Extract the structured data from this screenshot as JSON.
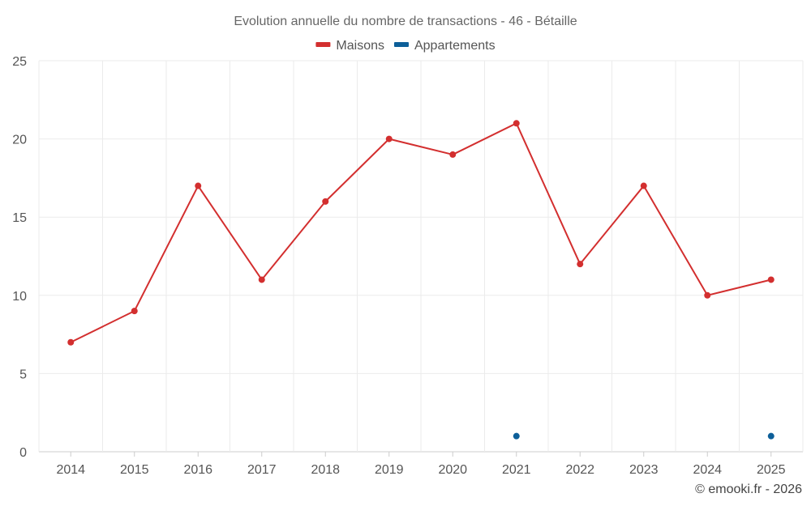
{
  "chart_data": {
    "type": "line",
    "title": "Evolution annuelle du nombre de transactions - 46 - Bétaille",
    "categories": [
      "2014",
      "2015",
      "2016",
      "2017",
      "2018",
      "2019",
      "2020",
      "2021",
      "2022",
      "2023",
      "2024",
      "2025"
    ],
    "series": [
      {
        "name": "Maisons",
        "color": "#d32f2f",
        "values": [
          7,
          9,
          17,
          11,
          16,
          20,
          19,
          21,
          12,
          17,
          10,
          11
        ]
      },
      {
        "name": "Appartements",
        "color": "#0d5f99",
        "values": [
          null,
          null,
          null,
          null,
          null,
          null,
          null,
          1,
          null,
          null,
          null,
          1
        ]
      }
    ],
    "ylim": [
      0,
      25
    ],
    "yticks": [
      "0",
      "5",
      "10",
      "15",
      "20",
      "25"
    ],
    "xlabel": "",
    "ylabel": "",
    "legend_position": "top-center",
    "grid": true
  },
  "credit": "© emooki.fr - 2026"
}
